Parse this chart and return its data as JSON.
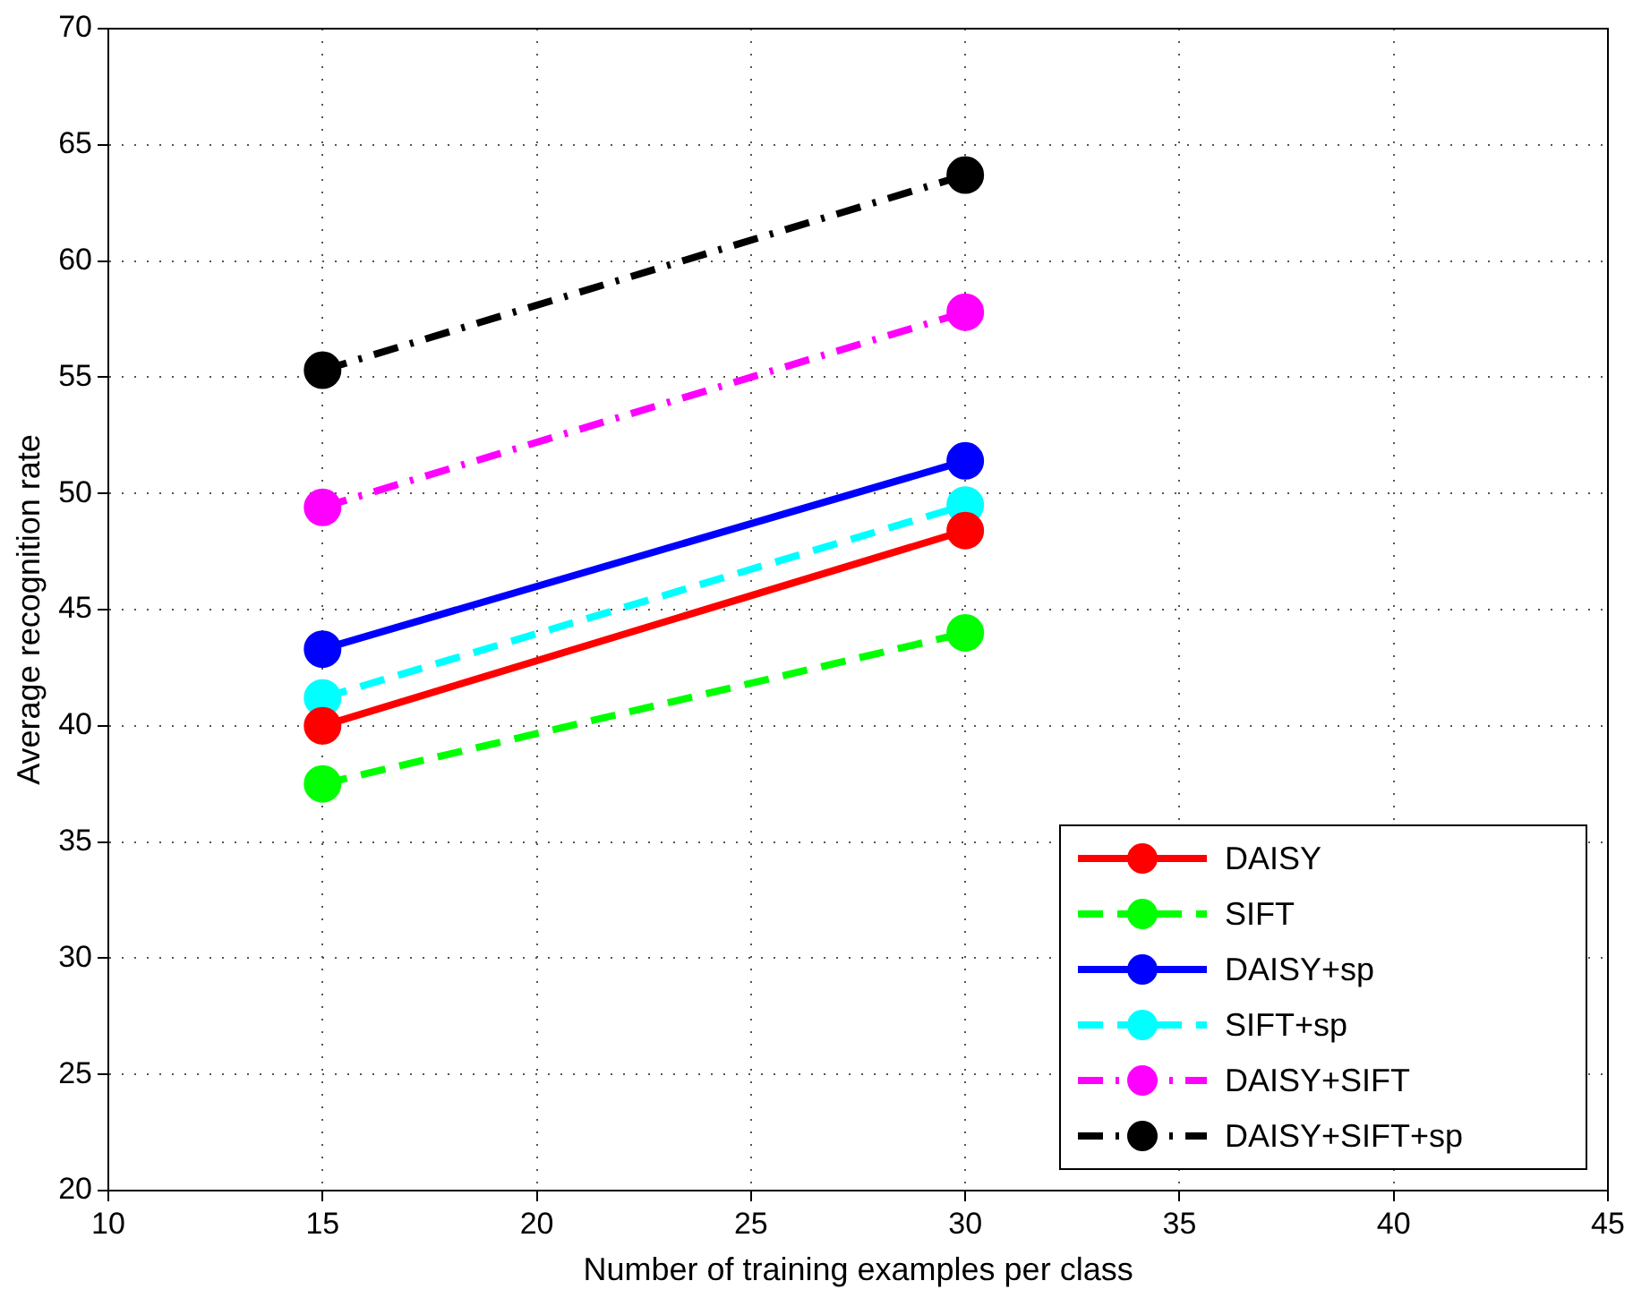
{
  "chart_data": {
    "type": "line",
    "xlabel": "Number of training examples per class",
    "ylabel": "Average recognition rate",
    "x": [
      15,
      30
    ],
    "series": [
      {
        "name": "DAISY",
        "color": "#ff0000",
        "values": [
          40.0,
          48.4
        ],
        "line_style": "solid"
      },
      {
        "name": "SIFT",
        "color": "#00ff00",
        "values": [
          37.5,
          44.0
        ],
        "line_style": "dashed"
      },
      {
        "name": "DAISY+sp",
        "color": "#0000ff",
        "values": [
          43.3,
          51.4
        ],
        "line_style": "solid"
      },
      {
        "name": "SIFT+sp",
        "color": "#00ffff",
        "values": [
          41.2,
          49.5
        ],
        "line_style": "dashed"
      },
      {
        "name": "DAISY+SIFT",
        "color": "#ff00ff",
        "values": [
          49.4,
          57.8
        ],
        "line_style": "dashdot"
      },
      {
        "name": "DAISY+SIFT+sp",
        "color": "#000000",
        "values": [
          55.3,
          63.7
        ],
        "line_style": "dashdot"
      }
    ],
    "xlim": [
      10,
      45
    ],
    "xticks": [
      10,
      15,
      20,
      25,
      30,
      35,
      40,
      45
    ],
    "ylim": [
      20,
      70
    ],
    "yticks": [
      20,
      25,
      30,
      35,
      40,
      45,
      50,
      55,
      60,
      65,
      70
    ],
    "grid": true,
    "legend": "bottom right",
    "marker": "circle"
  }
}
